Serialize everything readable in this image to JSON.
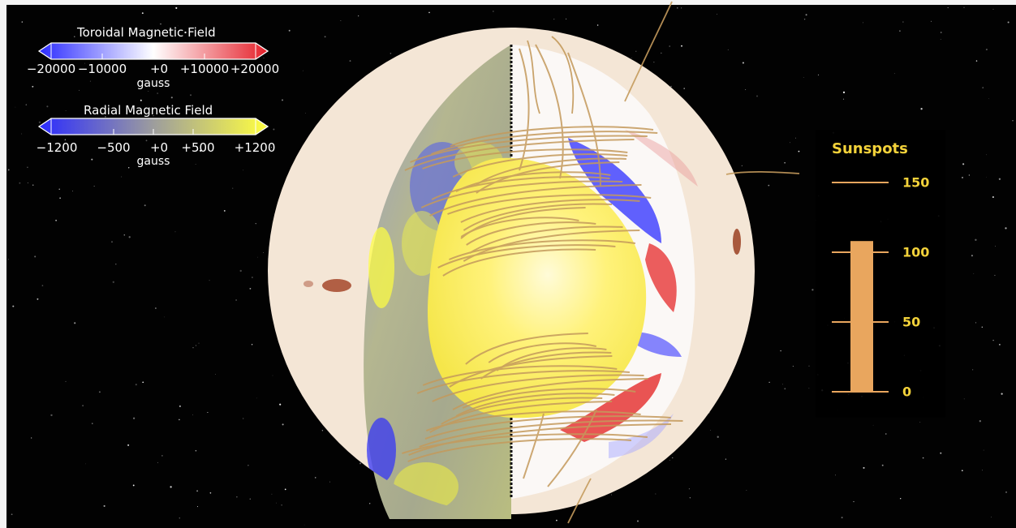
{
  "toroidal": {
    "title": "Toroidal Magnetic Field",
    "ticks": [
      "−20000",
      "−10000",
      "+0",
      "+10000",
      "+20000"
    ],
    "unit": "gauss"
  },
  "radial": {
    "title": "Radial Magnetic Field",
    "ticks": [
      "−1200",
      "−500",
      "+0",
      "+500",
      "+1200"
    ],
    "unit": "gauss"
  },
  "sunspots": {
    "title": "Sunspots",
    "ticks": [
      "150",
      "100",
      "50",
      "0"
    ],
    "value": 108,
    "max": 150,
    "bar_color": "#e9a65e",
    "text_color": "#f3d23a"
  },
  "colors": {
    "negative": "#2b2bff",
    "zero": "#ffffff",
    "positive": "#e5202a",
    "radial_positive": "#ffff40",
    "field_lines": "#c49a5c",
    "photosphere": "#f4e6d6"
  }
}
